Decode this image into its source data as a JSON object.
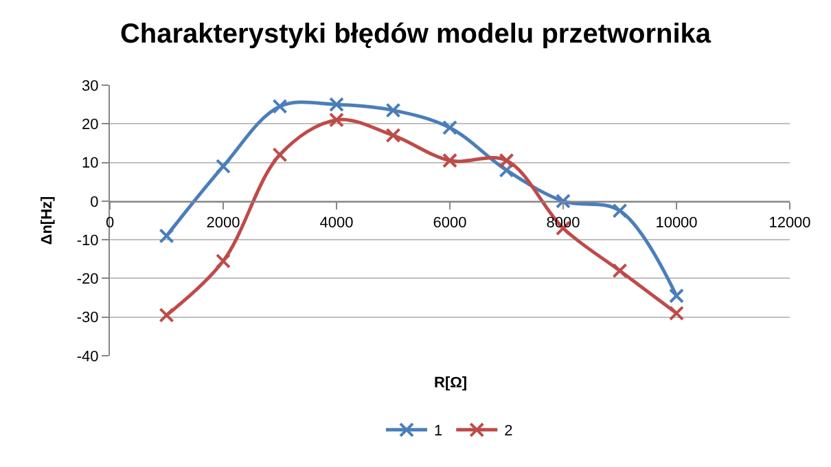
{
  "chart_data": {
    "type": "line",
    "title": "Charakterystyki błędów modelu przetwornika",
    "xlabel": "R[Ω]",
    "ylabel": "Δn[Hz]",
    "x": [
      1000,
      2000,
      3000,
      4000,
      5000,
      6000,
      7000,
      8000,
      9000,
      10000
    ],
    "series": [
      {
        "name": "1",
        "color": "#4a7ebb",
        "values": [
          -9,
          9,
          24.5,
          25,
          23.5,
          19,
          8,
          0,
          -2.5,
          -24.5
        ]
      },
      {
        "name": "2",
        "color": "#be4b48",
        "values": [
          -29.5,
          -15.5,
          12,
          21,
          17,
          10.5,
          10.5,
          -7,
          -18,
          -29
        ]
      }
    ],
    "xlim": [
      0,
      12000
    ],
    "xticks": [
      0,
      2000,
      4000,
      6000,
      8000,
      10000,
      12000
    ],
    "ylim": [
      -40,
      30
    ],
    "yticks": [
      -40,
      -30,
      -20,
      -10,
      0,
      10,
      20,
      30
    ],
    "grid": "y",
    "legend": "bottom",
    "marker": "cross",
    "line_style": "solid"
  }
}
